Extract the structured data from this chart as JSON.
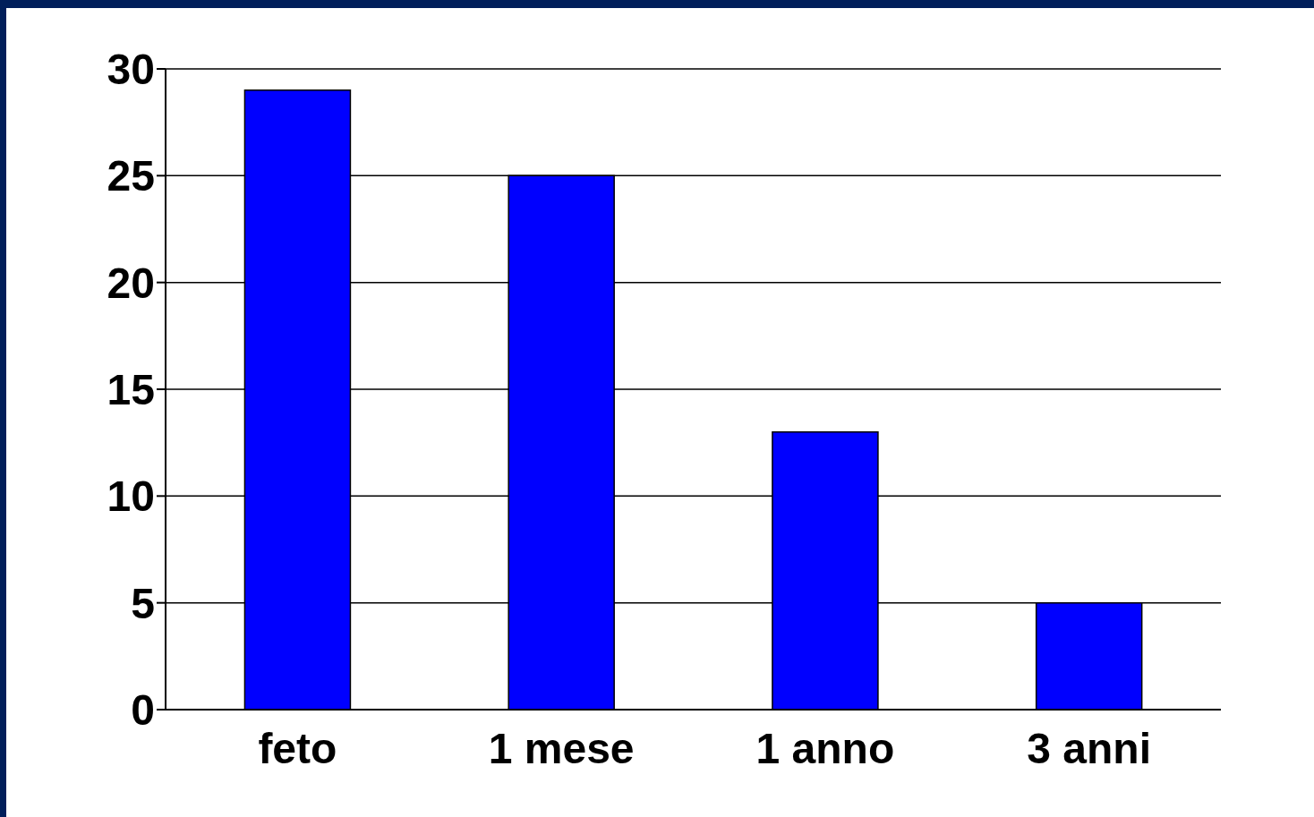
{
  "chart_data": {
    "type": "bar",
    "categories": [
      "feto",
      "1 mese",
      "1 anno",
      "3 anni"
    ],
    "values": [
      29,
      25,
      13,
      5
    ],
    "color": "#0000ff",
    "ylim": [
      0,
      30
    ],
    "yticks": [
      0,
      5,
      10,
      15,
      20,
      25,
      30
    ],
    "grid": "y"
  }
}
